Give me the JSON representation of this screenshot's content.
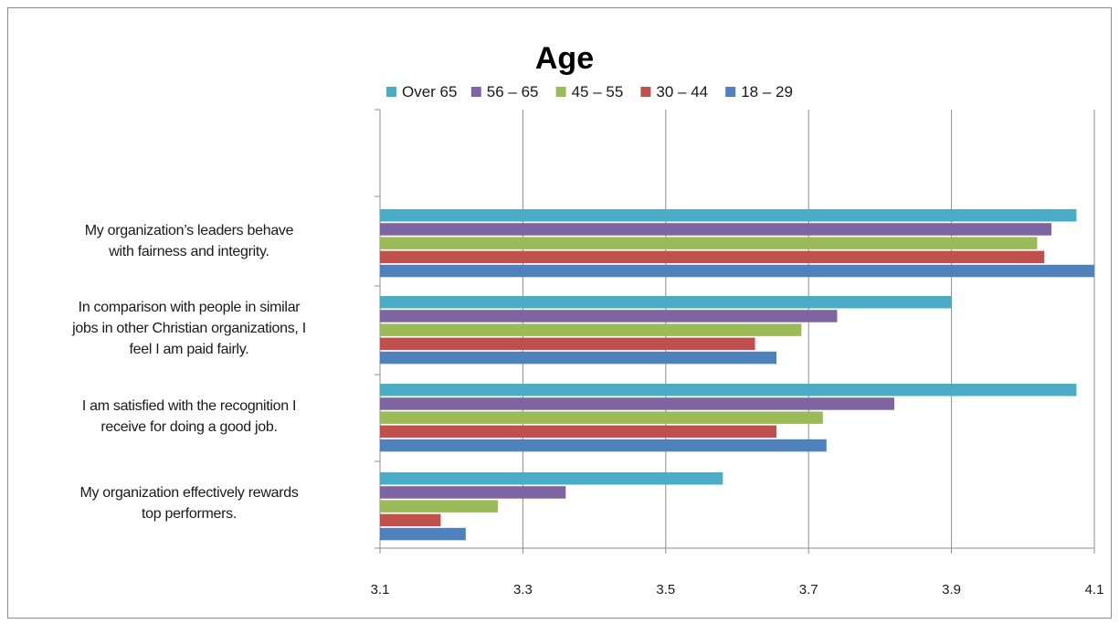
{
  "chart_data": {
    "type": "bar",
    "orientation": "horizontal",
    "title": "Age",
    "categories": [
      "My organization's leaders behave with fairness and integrity.",
      "In comparison with people in similar jobs in other Christian organizations, I feel I am paid fairly.",
      "I am satisfied with the recognition I receive for doing a good job.",
      "My organization effectively rewards top performers."
    ],
    "category_lines": [
      [
        "My organization’s leaders behave",
        "with fairness and integrity."
      ],
      [
        "In comparison with people in similar",
        "jobs in other Christian organizations, I",
        "feel I am paid fairly."
      ],
      [
        "I am satisfied with the recognition I",
        "receive for doing a good job."
      ],
      [
        "My organization effectively rewards",
        "top performers."
      ]
    ],
    "series": [
      {
        "name": "Over 65",
        "color": "#4bacc6",
        "values": [
          4.075,
          3.9,
          4.075,
          3.58
        ]
      },
      {
        "name": "56 – 65",
        "color": "#8064a2",
        "values": [
          4.04,
          3.74,
          3.82,
          3.36
        ]
      },
      {
        "name": "45 – 55",
        "color": "#9bbb59",
        "values": [
          4.02,
          3.69,
          3.72,
          3.265
        ]
      },
      {
        "name": "30 – 44",
        "color": "#c0504d",
        "values": [
          4.03,
          3.625,
          3.655,
          3.185
        ]
      },
      {
        "name": "18 – 29",
        "color": "#4f81bd",
        "values": [
          4.1,
          3.655,
          3.725,
          3.22
        ]
      }
    ],
    "xlim": [
      3.1,
      4.1
    ],
    "xticks": [
      "3.1",
      "3.3",
      "3.5",
      "3.7",
      "3.9",
      "4.1"
    ],
    "grid": true,
    "legend_position": "top"
  }
}
